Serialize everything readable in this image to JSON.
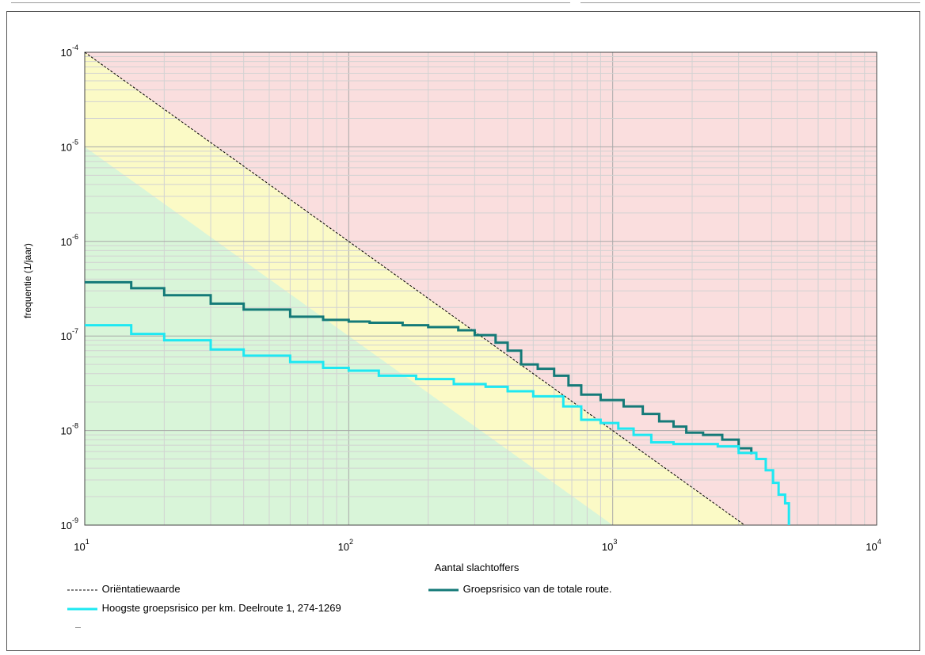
{
  "chart_data": {
    "type": "line",
    "xlabel": "Aantal slachtoffers",
    "ylabel": "frequentie (1/jaar)",
    "xscale": "log",
    "yscale": "log",
    "xlim": [
      10,
      10000
    ],
    "ylim": [
      1e-09,
      0.0001
    ],
    "x_ticks": [
      {
        "value": 10,
        "base": "10",
        "exp": "1"
      },
      {
        "value": 100,
        "base": "10",
        "exp": "2"
      },
      {
        "value": 1000,
        "base": "10",
        "exp": "3"
      },
      {
        "value": 10000,
        "base": "10",
        "exp": "4"
      }
    ],
    "y_ticks": [
      {
        "value": 0.0001,
        "base": "10",
        "exp": "-4"
      },
      {
        "value": 1e-05,
        "base": "10",
        "exp": "-5"
      },
      {
        "value": 1e-06,
        "base": "10",
        "exp": "-6"
      },
      {
        "value": 1e-07,
        "base": "10",
        "exp": "-7"
      },
      {
        "value": 1e-08,
        "base": "10",
        "exp": "-8"
      },
      {
        "value": 1e-09,
        "base": "10",
        "exp": "-9"
      }
    ],
    "grid": true,
    "zones": [
      {
        "fill": "#d9f5d9",
        "upper": [
          [
            10,
            1e-05
          ],
          [
            1000,
            1e-09
          ]
        ]
      },
      {
        "fill": "#fbfac6",
        "upper": [
          [
            10,
            0.0001
          ],
          [
            3160,
            1e-09
          ]
        ]
      },
      {
        "fill": "#fadede",
        "upper": "top"
      }
    ],
    "series": [
      {
        "name": "Oriëntatiewaarde",
        "color": "#000000",
        "dashed": true,
        "step": false,
        "points": [
          [
            10,
            0.0001
          ],
          [
            3160,
            1e-09
          ]
        ]
      },
      {
        "name": "Groepsrisico van de totale route.",
        "color": "#147a78",
        "dashed": false,
        "step": true,
        "points": [
          [
            10,
            3.7e-07
          ],
          [
            15,
            3.2e-07
          ],
          [
            20,
            2.7e-07
          ],
          [
            30,
            2.2e-07
          ],
          [
            40,
            1.9e-07
          ],
          [
            60,
            1.6e-07
          ],
          [
            80,
            1.48e-07
          ],
          [
            100,
            1.42e-07
          ],
          [
            120,
            1.38e-07
          ],
          [
            160,
            1.3e-07
          ],
          [
            200,
            1.24e-07
          ],
          [
            260,
            1.15e-07
          ],
          [
            300,
            1.02e-07
          ],
          [
            360,
            8.5e-08
          ],
          [
            400,
            7e-08
          ],
          [
            450,
            5e-08
          ],
          [
            520,
            4.5e-08
          ],
          [
            600,
            3.8e-08
          ],
          [
            680,
            3e-08
          ],
          [
            760,
            2.4e-08
          ],
          [
            900,
            2.1e-08
          ],
          [
            1100,
            1.8e-08
          ],
          [
            1300,
            1.5e-08
          ],
          [
            1500,
            1.25e-08
          ],
          [
            1700,
            1.1e-08
          ],
          [
            1900,
            9.5e-09
          ],
          [
            2200,
            9e-09
          ],
          [
            2600,
            8e-09
          ],
          [
            3000,
            6.5e-09
          ],
          [
            3350,
            5.6e-09
          ]
        ]
      },
      {
        "name": "Hoogste groepsrisico per km. Deelroute 1, 274-1269",
        "color": "#1ee8f2",
        "dashed": false,
        "step": true,
        "points": [
          [
            10,
            1.3e-07
          ],
          [
            15,
            1.05e-07
          ],
          [
            20,
            9e-08
          ],
          [
            30,
            7.2e-08
          ],
          [
            40,
            6.2e-08
          ],
          [
            60,
            5.3e-08
          ],
          [
            80,
            4.6e-08
          ],
          [
            100,
            4.3e-08
          ],
          [
            130,
            3.8e-08
          ],
          [
            180,
            3.5e-08
          ],
          [
            250,
            3.1e-08
          ],
          [
            330,
            2.9e-08
          ],
          [
            400,
            2.6e-08
          ],
          [
            500,
            2.3e-08
          ],
          [
            650,
            1.8e-08
          ],
          [
            760,
            1.3e-08
          ],
          [
            900,
            1.2e-08
          ],
          [
            1050,
            1.05e-08
          ],
          [
            1200,
            9e-09
          ],
          [
            1400,
            7.5e-09
          ],
          [
            1700,
            7.2e-09
          ],
          [
            2500,
            6.8e-09
          ],
          [
            3000,
            5.8e-09
          ],
          [
            3500,
            5e-09
          ],
          [
            3800,
            3.8e-09
          ],
          [
            4050,
            2.8e-09
          ],
          [
            4250,
            2.1e-09
          ],
          [
            4500,
            1.7e-09
          ],
          [
            4650,
            1e-09
          ]
        ]
      }
    ]
  },
  "legend": {
    "dashed_label": "Oriëntatiewaarde",
    "dark_label": "Groepsrisico van de totale route.",
    "cyan_label": "Hoogste groepsrisico per km. Deelroute 1, 274-1269"
  }
}
